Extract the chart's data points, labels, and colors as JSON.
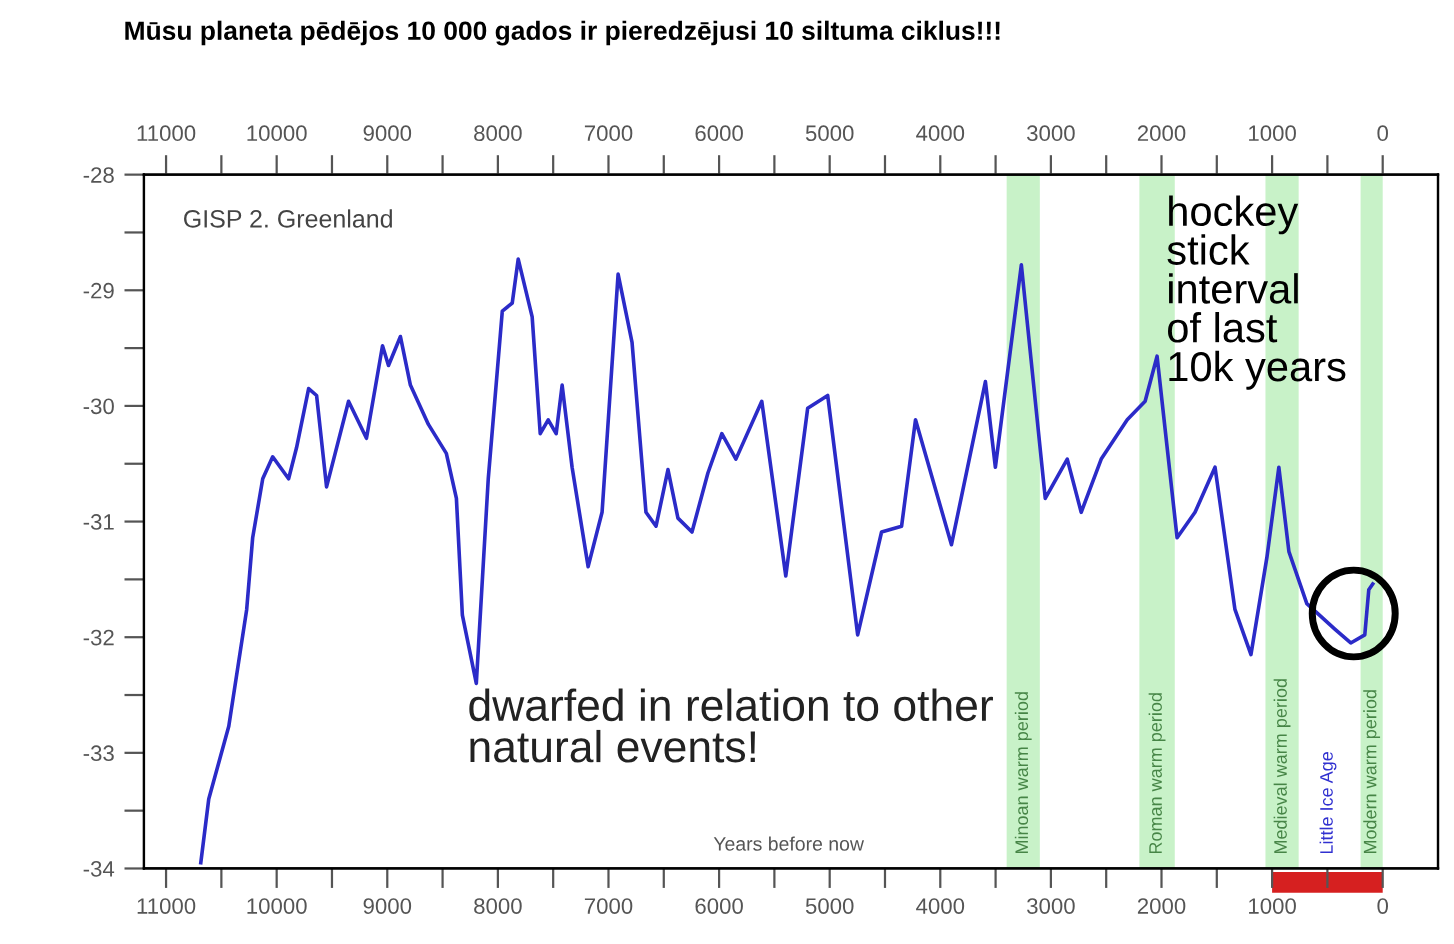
{
  "chart_data": {
    "type": "line",
    "title": "Mūsu planeta pēdējos 10 000 gados ir pieredzējusi 10 siltuma ciklus!!!",
    "xlabel": "Years before now",
    "x": [
      10686,
      10614,
      10433,
      10271,
      10217,
      10126,
      10036,
      9892,
      9820,
      9711,
      9639,
      9549,
      9350,
      9188,
      9043,
      8989,
      8881,
      8791,
      8628,
      8466,
      8375,
      8321,
      8195,
      8087,
      7960,
      7870,
      7816,
      7690,
      7617,
      7545,
      7473,
      7419,
      7329,
      7184,
      7058,
      6913,
      6787,
      6661,
      6570,
      6462,
      6372,
      6245,
      6101,
      5975,
      5848,
      5614,
      5397,
      5199,
      5018,
      4747,
      4531,
      4350,
      4224,
      3899,
      3592,
      3502,
      3267,
      3051,
      2852,
      2726,
      2545,
      2310,
      2148,
      2040,
      1859,
      1697,
      1516,
      1336,
      1191,
      1047,
      939,
      848,
      686,
      433,
      289,
      162,
      126,
      90
    ],
    "series": [
      {
        "color": "#2b2bc8",
        "values": [
          -33.95,
          -33.4,
          -32.77,
          -31.76,
          -31.14,
          -30.63,
          -30.44,
          -30.63,
          -30.36,
          -29.85,
          -29.91,
          -30.7,
          -29.96,
          -30.28,
          -29.48,
          -29.65,
          -29.4,
          -29.82,
          -30.16,
          -30.41,
          -30.8,
          -31.81,
          -32.4,
          -30.63,
          -29.18,
          -29.11,
          -28.73,
          -29.23,
          -30.24,
          -30.12,
          -30.24,
          -29.82,
          -30.53,
          -31.39,
          -30.92,
          -28.86,
          -29.45,
          -30.92,
          -31.04,
          -30.55,
          -30.97,
          -31.09,
          -30.58,
          -30.24,
          -30.46,
          -29.96,
          -31.47,
          -30.02,
          -29.91,
          -31.98,
          -31.09,
          -31.04,
          -30.12,
          -31.2,
          -29.79,
          -30.53,
          -28.78,
          -30.8,
          -30.46,
          -30.92,
          -30.46,
          -30.12,
          -29.96,
          -29.57,
          -31.14,
          -30.92,
          -30.53,
          -31.76,
          -32.15,
          -31.31,
          -30.53,
          -31.26,
          -31.71,
          -31.93,
          -32.05,
          -31.98,
          -31.59,
          -31.54
        ]
      }
    ],
    "xlim": [
      11200,
      -500
    ],
    "ylim": [
      -34,
      -28
    ],
    "xticks": [
      11000,
      {
        "value": 10500,
        "label": null
      },
      10000,
      {
        "value": 9500,
        "label": null
      },
      9000,
      {
        "value": 8500,
        "label": null
      },
      8000,
      {
        "value": 7500,
        "label": null
      },
      7000,
      {
        "value": 6500,
        "label": null
      },
      6000,
      {
        "value": 5500,
        "label": null
      },
      5000,
      {
        "value": 4500,
        "label": null
      },
      4000,
      {
        "value": 3500,
        "label": null
      },
      3000,
      {
        "value": 2500,
        "label": null
      },
      2000,
      {
        "value": 1500,
        "label": null
      },
      1000,
      {
        "value": 500,
        "label": null
      },
      0
    ],
    "x2lim": [
      11200,
      -500
    ],
    "x2ticks": [
      11000,
      {
        "value": 10500,
        "label": null
      },
      10000,
      {
        "value": 9500,
        "label": null
      },
      9000,
      {
        "value": 8500,
        "label": null
      },
      8000,
      {
        "value": 7500,
        "label": null
      },
      7000,
      {
        "value": 6500,
        "label": null
      },
      6000,
      {
        "value": 5500,
        "label": null
      },
      5000,
      {
        "value": 4500,
        "label": null
      },
      4000,
      {
        "value": 3500,
        "label": null
      },
      3000,
      {
        "value": 2500,
        "label": null
      },
      2000,
      {
        "value": 1500,
        "label": null
      },
      1000,
      {
        "value": 500,
        "label": null
      },
      0
    ],
    "yticks": [
      -28,
      {
        "value": -28.5,
        "label": null
      },
      -29,
      {
        "value": -29.5,
        "label": null
      },
      -30,
      {
        "value": -30.5,
        "label": null
      },
      -31,
      {
        "value": -31.5,
        "label": null
      },
      -32,
      {
        "value": -32.5,
        "label": null
      },
      -33,
      {
        "value": -33.5,
        "label": null
      },
      -34
    ],
    "bands": [
      {
        "axis": "x",
        "from": 3400,
        "to": 3100,
        "label": "Minoan warm period",
        "color": "#c8f2c8"
      },
      {
        "axis": "x",
        "from": 2200,
        "to": 1880,
        "label": "Roman warm period",
        "color": "#c8f2c8"
      },
      {
        "axis": "x",
        "from": 1060,
        "to": 760,
        "label": "Medieval warm period",
        "color": "#c8f2c8"
      },
      {
        "axis": "x",
        "from": 200,
        "to": 0,
        "label": "Modern warm period",
        "color": "#c8f2c8"
      }
    ],
    "annotations": [
      "GISP 2. Greenland",
      "hockey stick interval of last 10k years",
      "dwarfed in relation to other natural events!",
      "Little Ice Age"
    ],
    "grid": false,
    "marker": "none",
    "line_style": "solid"
  }
}
